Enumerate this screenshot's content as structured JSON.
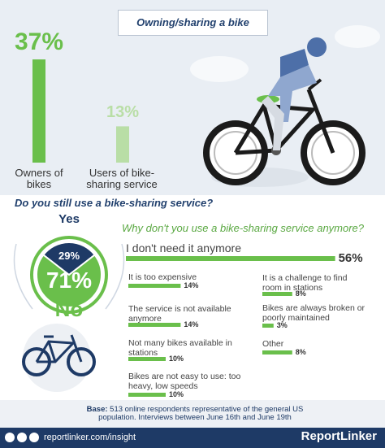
{
  "header": {
    "title": "Owning/sharing a bike"
  },
  "chart_data": [
    {
      "type": "bar",
      "categories": [
        "Owners of bikes",
        "Users of bike-sharing service"
      ],
      "values": [
        37,
        13
      ],
      "value_labels": [
        "37%",
        "13%"
      ],
      "colors": [
        "#6abf4b",
        "#b9dea6"
      ]
    },
    {
      "type": "pie",
      "title": "Do you still use a bike-sharing service?",
      "categories": [
        "Yes",
        "No"
      ],
      "values": [
        29,
        71
      ],
      "value_labels": [
        "29%",
        "71%"
      ],
      "colors": [
        "#1e3a66",
        "#6abf4b"
      ]
    },
    {
      "type": "hbar",
      "title": "Why don't you use a bike-sharing service anymore?",
      "categories": [
        "I don't need it anymore",
        "It is too expensive",
        "The service is not available anymore",
        "Not many bikes available in stations",
        "Bikes are not easy to use: too heavy, low speeds",
        "It is a challenge to find room in stations",
        "Bikes are always broken or poorly maintained",
        "Other"
      ],
      "values": [
        56,
        14,
        14,
        10,
        10,
        8,
        3,
        8
      ],
      "value_labels": [
        "56%",
        "14%",
        "14%",
        "10%",
        "10%",
        "8%",
        "3%",
        "8%"
      ],
      "color": "#6abf4b"
    }
  ],
  "footer": {
    "base_label": "Base:",
    "base_text": "513 online respondents representative of the general US population. Interviews between June 16th and June 19th",
    "url": "reportlinker.com/insight",
    "brand": "ReportLinker"
  }
}
